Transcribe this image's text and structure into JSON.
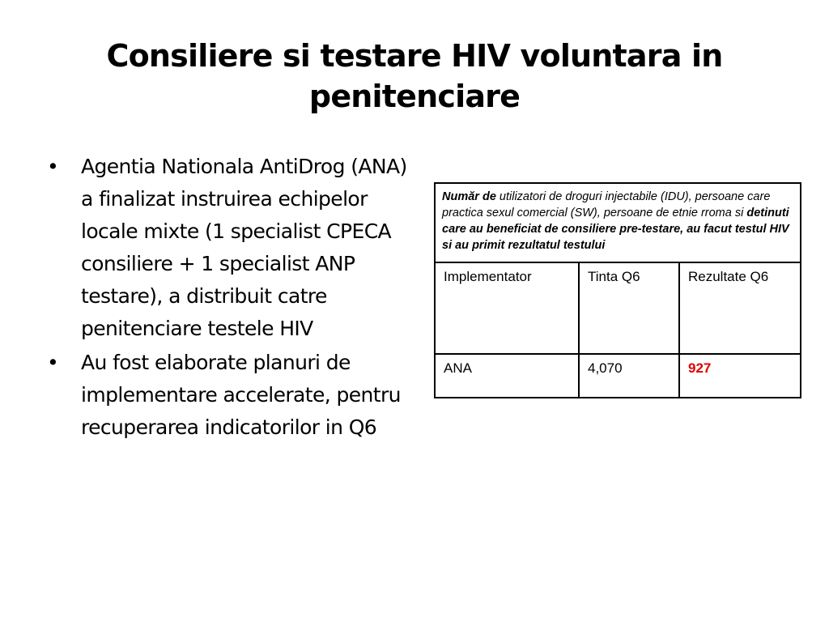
{
  "title": "Consiliere si testare HIV voluntara in penitenciare",
  "bullets": [
    "Agentia Nationala AntiDrog (ANA) a finalizat instruirea echipelor locale mixte (1 specialist CPECA consiliere + 1 specialist ANP testare), a distribuit catre penitenciare testele HIV",
    "Au fost elaborate planuri de implementare accelerate, pentru recuperarea indicatorilor in Q6"
  ],
  "bullet_symbol": "•",
  "table": {
    "caption_parts": {
      "bold_start": "Număr de",
      "normal": " utilizatori de droguri injectabile (IDU), persoane care practica sexul comercial (SW), persoane de etnie rroma si ",
      "bold_end": "detinuti care au beneficiat de consiliere pre-testare, au facut testul HIV si au primit rezultatul testului"
    },
    "headers": [
      "Implementator",
      "Tinta Q6",
      "Rezultate Q6"
    ],
    "row": {
      "implementator": "ANA",
      "tinta": "4,070",
      "rezultate": "927"
    },
    "highlight_color": "#e00000"
  }
}
